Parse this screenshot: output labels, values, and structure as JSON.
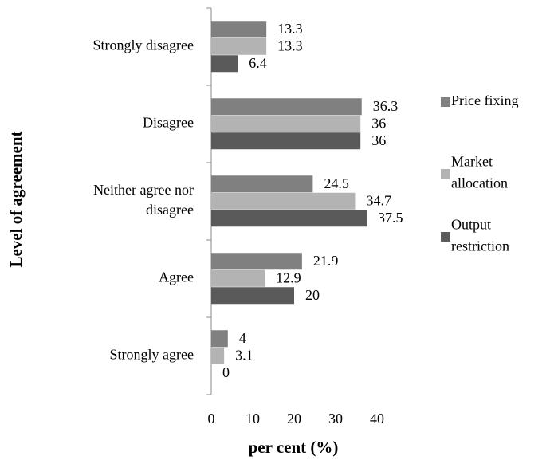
{
  "chart_data": {
    "type": "bar",
    "orientation": "horizontal",
    "x_label": "per cent (%)",
    "y_label": "Level of agreement",
    "categories": [
      "Strongly disagree",
      "Disagree",
      "Neither agree nor disagree",
      "Agree",
      "Strongly agree"
    ],
    "series": [
      {
        "name": "Price fixing",
        "color": "#808080",
        "values": [
          13.3,
          36.3,
          24.5,
          21.9,
          4
        ]
      },
      {
        "name": "Market allocation",
        "color": "#b3b3b3",
        "values": [
          13.3,
          36,
          34.7,
          12.9,
          3.1
        ]
      },
      {
        "name": "Output restriction",
        "color": "#5a5a5a",
        "values": [
          6.4,
          36,
          37.5,
          20,
          0
        ]
      }
    ],
    "xlim": [
      0,
      40
    ],
    "xticks": [
      0,
      10,
      20,
      30,
      40
    ],
    "legend": "right"
  }
}
